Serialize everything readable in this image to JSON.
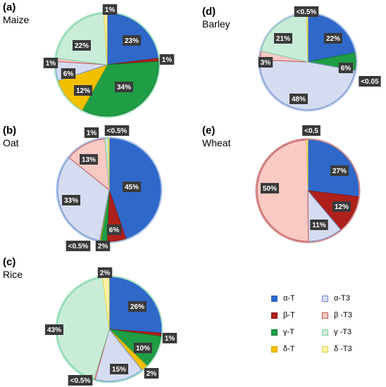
{
  "series_colors": {
    "alpha-T": {
      "fill": "#2f68c9",
      "stroke": "#2f68c9"
    },
    "beta-T": {
      "fill": "#b0201a",
      "stroke": "#8a1512"
    },
    "gamma-T": {
      "fill": "#1f9e45",
      "stroke": "#127a30"
    },
    "delta-T": {
      "fill": "#f3c000",
      "stroke": "#d8a600"
    },
    "alpha-T3": {
      "fill": "#d6dcf0",
      "stroke": "#6f8fd0"
    },
    "beta-T3": {
      "fill": "#f9c9c4",
      "stroke": "#c25757"
    },
    "gamma-T3": {
      "fill": "#c9ecd8",
      "stroke": "#7fd0a3"
    },
    "delta-T3": {
      "fill": "#fbf3a8",
      "stroke": "#e8d24a"
    }
  },
  "legend": [
    {
      "key": "alpha-T",
      "label": "α-T"
    },
    {
      "key": "alpha-T3",
      "label": "α-T3"
    },
    {
      "key": "beta-T",
      "label": "β-T"
    },
    {
      "key": "beta-T3",
      "label": "β -T3"
    },
    {
      "key": "gamma-T",
      "label": "γ-T"
    },
    {
      "key": "gamma-T3",
      "label": "γ -T3"
    },
    {
      "key": "delta-T",
      "label": "δ-T"
    },
    {
      "key": "delta-T3",
      "label": "δ -T3"
    }
  ],
  "chart_data": [
    {
      "type": "pie",
      "panel": "(a)",
      "title": "Maize",
      "slices": [
        {
          "series": "alpha-T",
          "value": 23,
          "label": "23%"
        },
        {
          "series": "beta-T",
          "value": 1,
          "label": "1%"
        },
        {
          "series": "gamma-T",
          "value": 34,
          "label": "34%"
        },
        {
          "series": "delta-T",
          "value": 12,
          "label": "12%"
        },
        {
          "series": "alpha-T3",
          "value": 6,
          "label": "6%"
        },
        {
          "series": "beta-T3",
          "value": 1,
          "label": "1%"
        },
        {
          "series": "gamma-T3",
          "value": 22,
          "label": "22%"
        },
        {
          "series": "delta-T3",
          "value": 1,
          "label": "1%"
        }
      ]
    },
    {
      "type": "pie",
      "panel": "(b)",
      "title": "Oat",
      "slices": [
        {
          "series": "alpha-T",
          "value": 45,
          "label": "45%"
        },
        {
          "series": "beta-T",
          "value": 6,
          "label": "6%"
        },
        {
          "series": "gamma-T",
          "value": 2,
          "label": "2%"
        },
        {
          "series": "delta-T",
          "value": 0.3,
          "label": "<0.5%"
        },
        {
          "series": "alpha-T3",
          "value": 33,
          "label": "33%"
        },
        {
          "series": "beta-T3",
          "value": 13,
          "label": "13%"
        },
        {
          "series": "gamma-T3",
          "value": 1,
          "label": "1%"
        },
        {
          "series": "delta-T3",
          "value": 0.3,
          "label": "<0.5%"
        }
      ]
    },
    {
      "type": "pie",
      "panel": "(c)",
      "title": "Rice",
      "slices": [
        {
          "series": "alpha-T",
          "value": 26,
          "label": "26%"
        },
        {
          "series": "beta-T",
          "value": 1,
          "label": "1%"
        },
        {
          "series": "gamma-T",
          "value": 10,
          "label": "10%"
        },
        {
          "series": "delta-T",
          "value": 2,
          "label": "2%"
        },
        {
          "series": "alpha-T3",
          "value": 15,
          "label": "15%"
        },
        {
          "series": "beta-T3",
          "value": 0.4,
          "label": "<0.5%"
        },
        {
          "series": "gamma-T3",
          "value": 43,
          "label": "43%"
        },
        {
          "series": "delta-T3",
          "value": 2,
          "label": "2%"
        }
      ]
    },
    {
      "type": "pie",
      "panel": "(d)",
      "title": "Barley",
      "slices": [
        {
          "series": "alpha-T",
          "value": 22,
          "label": "22%"
        },
        {
          "series": "gamma-T",
          "value": 6,
          "label": "6%"
        },
        {
          "series": "delta-T",
          "value": 0.04,
          "label": "<0.05"
        },
        {
          "series": "alpha-T3",
          "value": 48,
          "label": "48%"
        },
        {
          "series": "beta-T3",
          "value": 3,
          "label": "3%"
        },
        {
          "series": "gamma-T3",
          "value": 21,
          "label": "21%"
        },
        {
          "series": "delta-T3",
          "value": 0.4,
          "label": "<0.5%"
        }
      ]
    },
    {
      "type": "pie",
      "panel": "(e)",
      "title": "Wheat",
      "slices": [
        {
          "series": "alpha-T",
          "value": 27,
          "label": "27%"
        },
        {
          "series": "beta-T",
          "value": 12,
          "label": "12%"
        },
        {
          "series": "alpha-T3",
          "value": 11,
          "label": "11%"
        },
        {
          "series": "beta-T3",
          "value": 50,
          "label": "50%"
        },
        {
          "series": "delta-T3",
          "value": 0.4,
          "label": "<0.5"
        }
      ]
    }
  ]
}
